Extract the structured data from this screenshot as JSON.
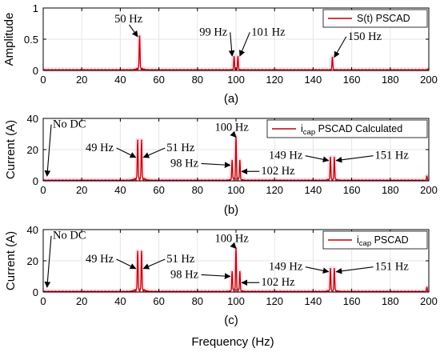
{
  "figure": {
    "xlabel": "Frequency (Hz)",
    "accent_color": "#c00000",
    "halo_color": "#f6c6dc"
  },
  "chart_data": [
    {
      "type": "line",
      "subplot_label": "(a)",
      "ylabel": "Amplitude",
      "xlim": [
        0,
        200
      ],
      "ylim": [
        0,
        1
      ],
      "xticks": [
        0,
        20,
        40,
        60,
        80,
        100,
        120,
        140,
        160,
        180,
        200
      ],
      "yticks": [
        0,
        0.5,
        1
      ],
      "ytick_labels": [
        "0",
        "0.5",
        "1"
      ],
      "grid": true,
      "legend": {
        "position": "top-right",
        "entries": [
          {
            "text": "S(t) PSCAD",
            "sub": ""
          }
        ]
      },
      "series": [
        {
          "name": "S(t) PSCAD",
          "peaks": [
            {
              "x": 50,
              "y": 0.55
            },
            {
              "x": 99,
              "y": 0.22
            },
            {
              "x": 101,
              "y": 0.22
            },
            {
              "x": 150,
              "y": 0.21
            },
            {
              "x": 199.5,
              "y": 0.02
            }
          ]
        }
      ],
      "annotations": [
        {
          "text": "50 Hz",
          "tx": 37,
          "ty": 0.77,
          "ax": 49,
          "ay": 0.54
        },
        {
          "text": "99 Hz",
          "tx": 81,
          "ty": 0.56,
          "ax": 98,
          "ay": 0.23
        },
        {
          "text": "101 Hz",
          "tx": 108,
          "ty": 0.56,
          "ax": 102,
          "ay": 0.23
        },
        {
          "text": "150 Hz",
          "tx": 158,
          "ty": 0.49,
          "ax": 151,
          "ay": 0.21
        }
      ]
    },
    {
      "type": "line",
      "subplot_label": "(b)",
      "ylabel": "Current (A)",
      "xlim": [
        0,
        200
      ],
      "ylim": [
        0,
        40
      ],
      "xticks": [
        0,
        20,
        40,
        60,
        80,
        100,
        120,
        140,
        160,
        180,
        200
      ],
      "yticks": [
        0,
        20,
        40
      ],
      "ytick_labels": [
        "0",
        "20",
        "40"
      ],
      "grid": true,
      "legend": {
        "position": "top-right",
        "entries": [
          {
            "text": "i",
            "sub": "cap",
            "after": " PSCAD Calculated"
          }
        ]
      },
      "series": [
        {
          "name": "icap PSCAD Calculated",
          "peaks": [
            {
              "x": 49,
              "y": 26
            },
            {
              "x": 51,
              "y": 26
            },
            {
              "x": 98,
              "y": 13
            },
            {
              "x": 100,
              "y": 28
            },
            {
              "x": 102,
              "y": 13
            },
            {
              "x": 149,
              "y": 15
            },
            {
              "x": 151,
              "y": 15
            },
            {
              "x": 199,
              "y": 3
            }
          ]
        }
      ],
      "annotations": [
        {
          "text": "No DC",
          "tx": 5,
          "ty": 34,
          "ax": 2,
          "ay": 3
        },
        {
          "text": "49 Hz",
          "tx": 22,
          "ty": 19,
          "ax": 48,
          "ay": 15
        },
        {
          "text": "51 Hz",
          "tx": 64,
          "ty": 19,
          "ax": 52,
          "ay": 15
        },
        {
          "text": "100 Hz",
          "tx": 89,
          "ty": 32,
          "ax": 100,
          "ay": 28
        },
        {
          "text": "98 Hz",
          "tx": 66,
          "ty": 9,
          "ax": 97,
          "ay": 10
        },
        {
          "text": "102 Hz",
          "tx": 113,
          "ty": 4,
          "ax": 103,
          "ay": 6
        },
        {
          "text": "149 Hz",
          "tx": 117,
          "ty": 14,
          "ax": 148,
          "ay": 13
        },
        {
          "text": "151 Hz",
          "tx": 172,
          "ty": 14,
          "ax": 152,
          "ay": 13
        }
      ]
    },
    {
      "type": "line",
      "subplot_label": "(c)",
      "ylabel": "Current (A)",
      "xlim": [
        0,
        200
      ],
      "ylim": [
        0,
        40
      ],
      "xticks": [
        0,
        20,
        40,
        60,
        80,
        100,
        120,
        140,
        160,
        180,
        200
      ],
      "yticks": [
        0,
        20,
        40
      ],
      "ytick_labels": [
        "0",
        "20",
        "40"
      ],
      "grid": true,
      "legend": {
        "position": "top-right",
        "entries": [
          {
            "text": "i",
            "sub": "cap",
            "after": " PSCAD"
          }
        ]
      },
      "series": [
        {
          "name": "icap PSCAD",
          "peaks": [
            {
              "x": 49,
              "y": 26
            },
            {
              "x": 51,
              "y": 26
            },
            {
              "x": 98,
              "y": 13
            },
            {
              "x": 100,
              "y": 28
            },
            {
              "x": 102,
              "y": 13
            },
            {
              "x": 149,
              "y": 15
            },
            {
              "x": 151,
              "y": 15
            },
            {
              "x": 199,
              "y": 3
            }
          ]
        }
      ],
      "annotations": [
        {
          "text": "No DC",
          "tx": 5,
          "ty": 34,
          "ax": 2,
          "ay": 3
        },
        {
          "text": "49 Hz",
          "tx": 22,
          "ty": 19,
          "ax": 48,
          "ay": 15
        },
        {
          "text": "51 Hz",
          "tx": 64,
          "ty": 19,
          "ax": 52,
          "ay": 15
        },
        {
          "text": "100 Hz",
          "tx": 89,
          "ty": 32,
          "ax": 100,
          "ay": 28
        },
        {
          "text": "98 Hz",
          "tx": 66,
          "ty": 9,
          "ax": 97,
          "ay": 10
        },
        {
          "text": "102 Hz",
          "tx": 113,
          "ty": 4,
          "ax": 103,
          "ay": 6
        },
        {
          "text": "149 Hz",
          "tx": 117,
          "ty": 14,
          "ax": 148,
          "ay": 13
        },
        {
          "text": "151 Hz",
          "tx": 172,
          "ty": 14,
          "ax": 152,
          "ay": 13
        }
      ]
    }
  ]
}
